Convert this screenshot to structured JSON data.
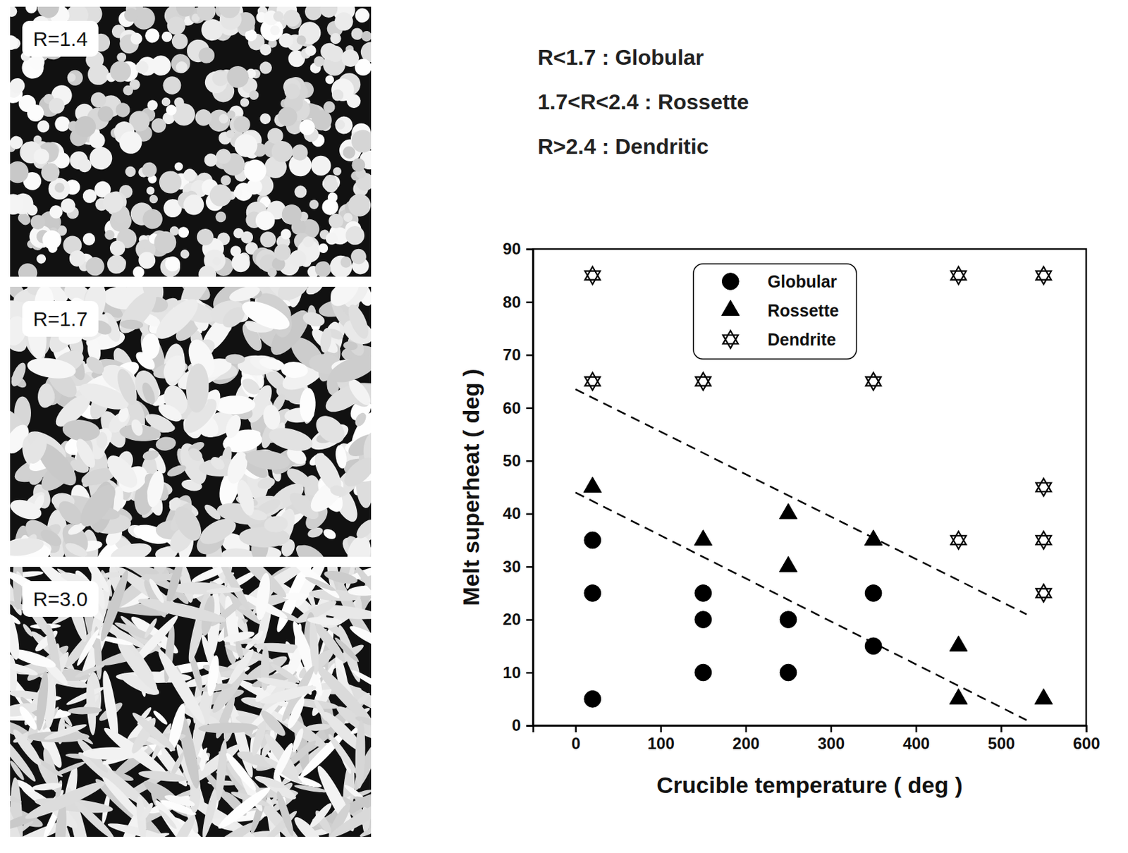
{
  "micrographs": [
    {
      "label": "R=1.4"
    },
    {
      "label": "R=1.7"
    },
    {
      "label": "R=3.0"
    }
  ],
  "criteria": [
    "R<1.7 : Globular",
    "1.7<R<2.4 : Rossette",
    "R>2.4 : Dendritic"
  ],
  "chart_data": {
    "type": "scatter",
    "x_label": "Crucible temperature ( deg )",
    "y_label": "Melt superheat ( deg )",
    "xlim": [
      -50,
      600
    ],
    "ylim": [
      0,
      90
    ],
    "xticks": [
      0,
      100,
      200,
      300,
      400,
      500,
      600
    ],
    "yticks": [
      0,
      10,
      20,
      30,
      40,
      50,
      60,
      70,
      80,
      90
    ],
    "grid": false,
    "legend": "top",
    "series": [
      {
        "name": "Globular",
        "marker": "circle",
        "color": "#000000",
        "x": [
          20,
          20,
          20,
          150,
          150,
          150,
          250,
          250,
          350,
          350
        ],
        "values": [
          35,
          25,
          5,
          25,
          20,
          10,
          20,
          10,
          25,
          15
        ]
      },
      {
        "name": "Rossette",
        "marker": "triangle",
        "color": "#000000",
        "x": [
          20,
          150,
          250,
          250,
          350,
          450,
          450,
          550
        ],
        "values": [
          45,
          35,
          40,
          30,
          35,
          15,
          5,
          5
        ]
      },
      {
        "name": "Dendrite",
        "marker": "hexagram-open",
        "color": "#000000",
        "x": [
          20,
          20,
          150,
          350,
          450,
          550,
          450,
          550,
          550,
          550
        ],
        "values": [
          85,
          65,
          65,
          65,
          85,
          85,
          35,
          45,
          35,
          25
        ]
      },
      {
        "type": "line",
        "line_style": "dashed",
        "color": "#000000",
        "x": [
          0,
          530
        ],
        "values": [
          63.5,
          21
        ]
      },
      {
        "type": "line",
        "line_style": "dashed",
        "color": "#000000",
        "x": [
          0,
          530
        ],
        "values": [
          44,
          1
        ]
      }
    ]
  }
}
